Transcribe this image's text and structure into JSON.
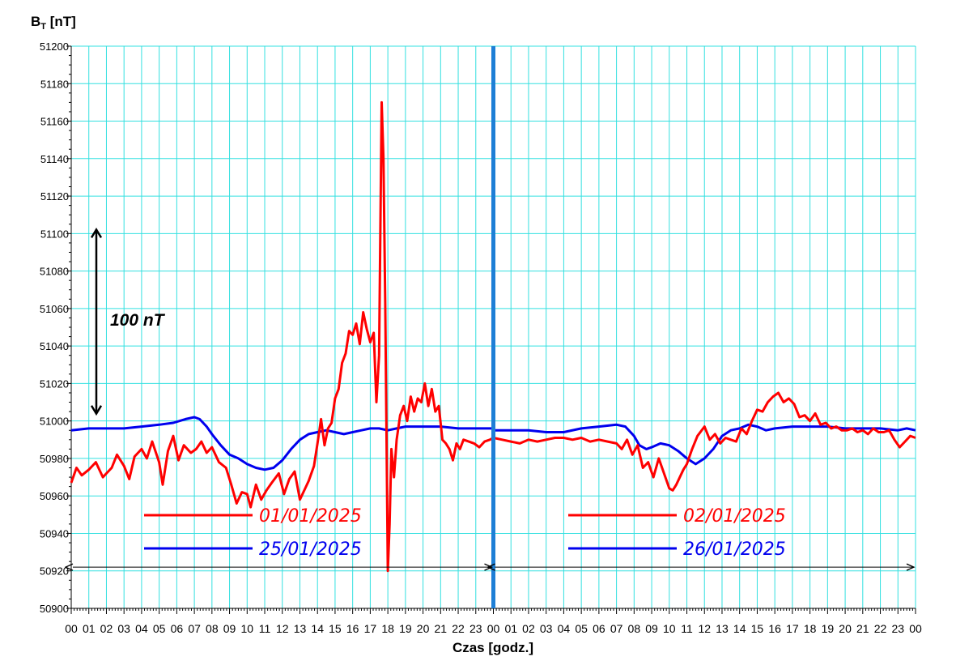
{
  "chart_data": {
    "type": "line",
    "ylabel_main": "B",
    "ylabel_sub": "T",
    "ylabel_unit": " [nT]",
    "xlabel": "Czas [godz.]",
    "ylim": [
      50900,
      51200
    ],
    "y_ticks": [
      "50900",
      "50920",
      "50940",
      "50960",
      "50980",
      "51000",
      "51020",
      "51040",
      "51060",
      "51080",
      "51100",
      "51120",
      "51140",
      "51160",
      "51180",
      "51200"
    ],
    "xlim_hours": [
      0,
      48
    ],
    "x_ticks": [
      "00",
      "01",
      "02",
      "03",
      "04",
      "05",
      "06",
      "07",
      "08",
      "09",
      "10",
      "11",
      "12",
      "13",
      "14",
      "15",
      "16",
      "17",
      "18",
      "19",
      "20",
      "21",
      "22",
      "23",
      "00",
      "01",
      "02",
      "03",
      "04",
      "05",
      "06",
      "07",
      "08",
      "09",
      "10",
      "11",
      "12",
      "13",
      "14",
      "15",
      "16",
      "17",
      "18",
      "19",
      "20",
      "21",
      "22",
      "23",
      "00"
    ],
    "grid": true,
    "grid_color": "#33e0e0",
    "day_divider_hour": 24,
    "annotation": {
      "text": "100 nT",
      "from": 51003,
      "to": 51103
    },
    "series": [
      {
        "name": "01/01/2025",
        "legend": "01/01/2025",
        "color": "#ff0000",
        "x": [
          0,
          0.3,
          0.6,
          1.0,
          1.4,
          1.8,
          2.0,
          2.3,
          2.6,
          3.0,
          3.3,
          3.6,
          4.0,
          4.3,
          4.6,
          5.0,
          5.2,
          5.5,
          5.8,
          6.1,
          6.4,
          6.8,
          7.1,
          7.4,
          7.7,
          8.0,
          8.4,
          8.8,
          9.1,
          9.4,
          9.7,
          10.0,
          10.2,
          10.5,
          10.8,
          11.1,
          11.4,
          11.8,
          12.1,
          12.4,
          12.7,
          13.0,
          13.2,
          13.5,
          13.8,
          14.0,
          14.2,
          14.4,
          14.6,
          14.8,
          15.0,
          15.2,
          15.4,
          15.6,
          15.8,
          16.0,
          16.2,
          16.4,
          16.6,
          16.8,
          17.0,
          17.2,
          17.35,
          17.5,
          17.65,
          17.75,
          17.85,
          18.0,
          18.1,
          18.2,
          18.35,
          18.5,
          18.7,
          18.9,
          19.1,
          19.3,
          19.5,
          19.7,
          19.9,
          20.1,
          20.3,
          20.5,
          20.7,
          20.9,
          21.1,
          21.3,
          21.5,
          21.7,
          21.9,
          22.1,
          22.3,
          22.6,
          22.9,
          23.2,
          23.5,
          23.8,
          24.0
        ],
        "y": [
          50967,
          50975,
          50971,
          50974,
          50978,
          50970,
          50972,
          50975,
          50982,
          50976,
          50969,
          50981,
          50985,
          50980,
          50989,
          50978,
          50966,
          50984,
          50992,
          50979,
          50987,
          50983,
          50985,
          50989,
          50983,
          50986,
          50978,
          50975,
          50966,
          50956,
          50962,
          50961,
          50954,
          50966,
          50958,
          50963,
          50967,
          50972,
          50961,
          50969,
          50973,
          50958,
          50962,
          50968,
          50976,
          50988,
          51001,
          50987,
          50996,
          50999,
          51012,
          51017,
          51031,
          51036,
          51048,
          51046,
          51052,
          51041,
          51058,
          51049,
          51042,
          51047,
          51010,
          51035,
          51170,
          51140,
          51063,
          50920,
          50945,
          50985,
          50970,
          50990,
          51003,
          51008,
          51000,
          51013,
          51005,
          51012,
          51010,
          51020,
          51008,
          51017,
          51005,
          51008,
          50990,
          50988,
          50985,
          50979,
          50988,
          50985,
          50990,
          50989,
          50988,
          50986,
          50989,
          50990,
          50991
        ]
      },
      {
        "name": "02/01/2025",
        "legend": "02/01/2025",
        "color": "#ff0000",
        "x": [
          24.0,
          24.5,
          25.0,
          25.5,
          26.0,
          26.5,
          27.0,
          27.5,
          28.0,
          28.5,
          29.0,
          29.5,
          30.0,
          30.5,
          31.0,
          31.3,
          31.6,
          31.9,
          32.2,
          32.5,
          32.8,
          33.1,
          33.4,
          33.7,
          34.0,
          34.2,
          34.4,
          34.6,
          34.8,
          35.0,
          35.3,
          35.6,
          36.0,
          36.3,
          36.6,
          36.9,
          37.2,
          37.5,
          37.8,
          38.1,
          38.4,
          38.7,
          39.0,
          39.3,
          39.6,
          39.9,
          40.2,
          40.5,
          40.8,
          41.1,
          41.4,
          41.7,
          42.0,
          42.3,
          42.6,
          42.9,
          43.2,
          43.5,
          43.8,
          44.1,
          44.4,
          44.7,
          45.0,
          45.3,
          45.6,
          45.9,
          46.2,
          46.5,
          46.8,
          47.1,
          47.4,
          47.7,
          48.0
        ],
        "y": [
          50991,
          50990,
          50989,
          50988,
          50990,
          50989,
          50990,
          50991,
          50991,
          50990,
          50991,
          50989,
          50990,
          50989,
          50988,
          50985,
          50990,
          50982,
          50987,
          50975,
          50978,
          50970,
          50980,
          50972,
          50964,
          50963,
          50966,
          50970,
          50974,
          50977,
          50985,
          50992,
          50997,
          50990,
          50993,
          50988,
          50991,
          50990,
          50989,
          50996,
          50993,
          51000,
          51006,
          51005,
          51010,
          51013,
          51015,
          51010,
          51012,
          51009,
          51002,
          51003,
          51000,
          51004,
          50998,
          50999,
          50996,
          50997,
          50995,
          50995,
          50996,
          50994,
          50995,
          50993,
          50996,
          50994,
          50994,
          50995,
          50990,
          50986,
          50989,
          50992,
          50991
        ]
      },
      {
        "name": "25/01/2025",
        "legend": "25/01/2025",
        "color": "#0000ee",
        "x": [
          0,
          1,
          2,
          3,
          4,
          5,
          5.8,
          6.5,
          7.0,
          7.3,
          7.7,
          8.0,
          8.5,
          9.0,
          9.5,
          10.0,
          10.5,
          11.0,
          11.5,
          12.0,
          12.5,
          13.0,
          13.5,
          14.0,
          14.5,
          15.0,
          15.5,
          16.0,
          16.5,
          17.0,
          17.5,
          18.0,
          18.5,
          19.0,
          20.0,
          21.0,
          22.0,
          23.0,
          24.0
        ],
        "y": [
          50995,
          50996,
          50996,
          50996,
          50997,
          50998,
          50999,
          51001,
          51002,
          51001,
          50997,
          50993,
          50987,
          50982,
          50980,
          50977,
          50975,
          50974,
          50975,
          50979,
          50985,
          50990,
          50993,
          50994,
          50995,
          50994,
          50993,
          50994,
          50995,
          50996,
          50996,
          50995,
          50996,
          50997,
          50997,
          50997,
          50996,
          50996,
          50996
        ]
      },
      {
        "name": "26/01/2025",
        "legend": "26/01/2025",
        "color": "#0000ee",
        "x": [
          24,
          25,
          26,
          27,
          28,
          29,
          30,
          31,
          31.5,
          32.0,
          32.3,
          32.7,
          33.0,
          33.5,
          34.0,
          34.5,
          35.0,
          35.5,
          36.0,
          36.5,
          37.0,
          37.5,
          38.0,
          38.5,
          39.0,
          39.5,
          40.0,
          41.0,
          42.0,
          43.0,
          44.0,
          45.0,
          46.0,
          47.0,
          47.5,
          48.0
        ],
        "y": [
          50995,
          50995,
          50995,
          50994,
          50994,
          50996,
          50997,
          50998,
          50997,
          50992,
          50987,
          50985,
          50986,
          50988,
          50987,
          50984,
          50980,
          50977,
          50980,
          50985,
          50992,
          50995,
          50996,
          50998,
          50997,
          50995,
          50996,
          50997,
          50997,
          50997,
          50996,
          50996,
          50996,
          50995,
          50996,
          50995
        ]
      }
    ],
    "span_arrows": [
      {
        "from": 0,
        "to": 24
      },
      {
        "from": 24,
        "to": 48
      }
    ]
  }
}
